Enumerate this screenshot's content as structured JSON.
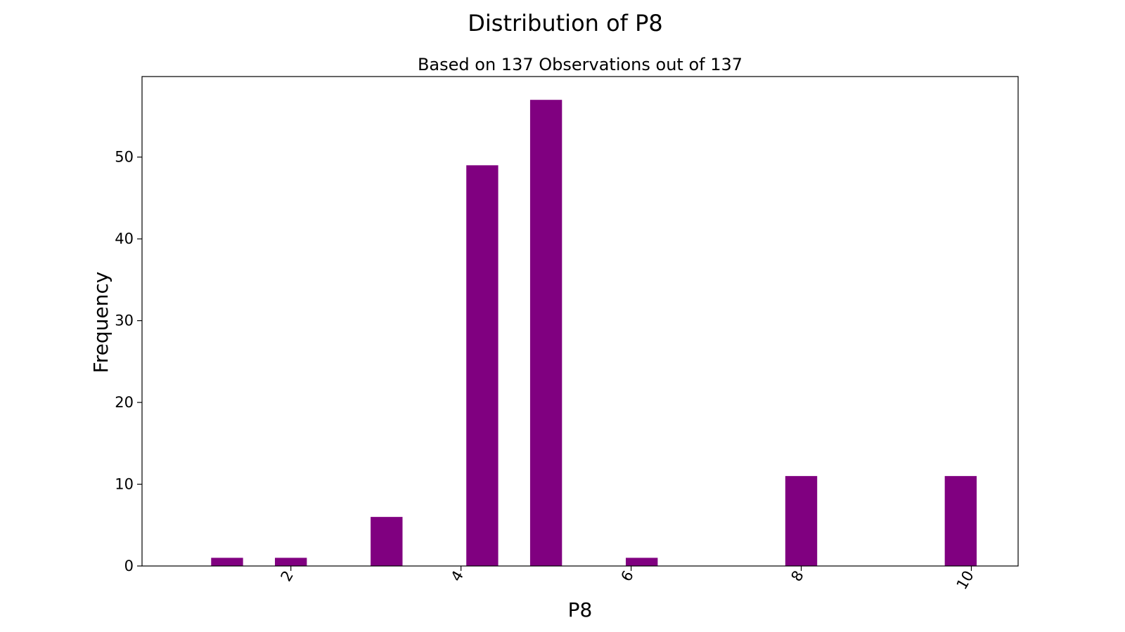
{
  "chart_data": {
    "type": "bar",
    "title": "Distribution of P8",
    "subtitle": "Based on 137 Observations out of 137",
    "xlabel": "P8",
    "ylabel": "Frequency",
    "bar_color": "#800080",
    "xlim": [
      0.25,
      10.55
    ],
    "ylim": [
      0,
      59.85
    ],
    "xticks": [
      2,
      4,
      6,
      8,
      10
    ],
    "yticks": [
      0,
      10,
      20,
      30,
      40,
      50
    ],
    "bar_width": 0.375,
    "x": [
      1.25,
      2.0,
      3.125,
      4.25,
      5.0,
      6.125,
      8.0,
      9.875
    ],
    "values": [
      1,
      1,
      6,
      49,
      57,
      1,
      11,
      11
    ],
    "grid": false,
    "legend": null
  }
}
